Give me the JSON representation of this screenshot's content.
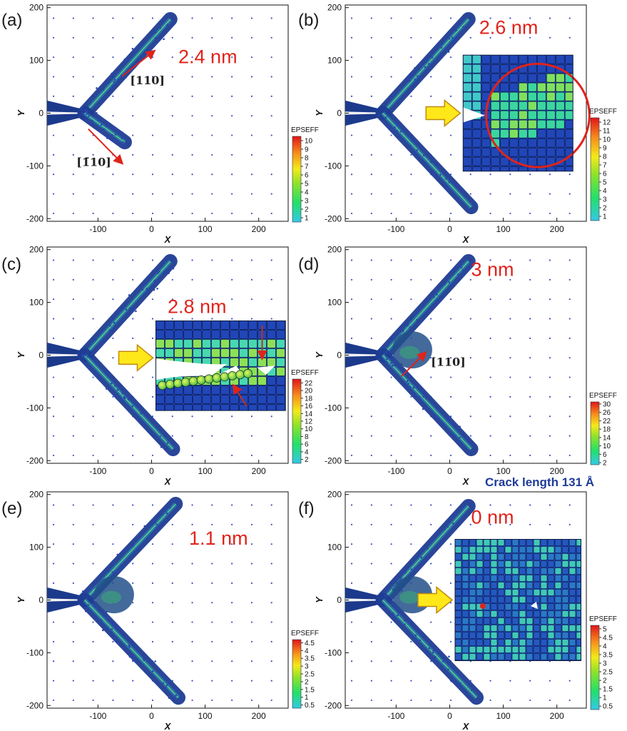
{
  "figure": {
    "crack_note": "Crack length 131 Å"
  },
  "chart_data": [
    {
      "type": "scatter",
      "panel": "(a)",
      "title": "",
      "xlabel": "X",
      "ylabel": "Y",
      "xlim": [
        -195,
        255
      ],
      "ylim": [
        -205,
        205
      ],
      "xticks": [
        -100,
        0,
        100,
        200
      ],
      "yticks": [
        -200,
        -100,
        0,
        100,
        200
      ],
      "annotation": "2.4 nm",
      "annotation_pos": [
        50,
        95
      ],
      "directions": [
        {
          "label": "[110]",
          "from": [
            -55,
            70
          ],
          "to": [
            5,
            118
          ],
          "label_pos": [
            -40,
            55
          ]
        },
        {
          "label": "[1̄10]",
          "from": [
            -118,
            -30
          ],
          "to": [
            -55,
            -95
          ],
          "label_pos": [
            -140,
            -100
          ]
        }
      ],
      "colorbar": {
        "title": "EPSEFF",
        "ticks": [
          10,
          9,
          8,
          7,
          6,
          5,
          4,
          3,
          2,
          1
        ],
        "min": 0.5,
        "max": 10.5
      },
      "insets": [],
      "inset_arrow": false
    },
    {
      "type": "scatter",
      "panel": "(b)",
      "title": "",
      "xlabel": "X",
      "ylabel": "Y",
      "xlim": [
        -195,
        255
      ],
      "ylim": [
        -205,
        205
      ],
      "xticks": [
        -100,
        0,
        100,
        200
      ],
      "yticks": [
        -200,
        -100,
        0,
        100,
        200
      ],
      "annotation": "2.6 nm",
      "annotation_pos": [
        55,
        150
      ],
      "directions": [],
      "colorbar": {
        "title": "EPSEFF",
        "ticks": [
          12,
          11,
          10,
          9,
          8,
          7,
          6,
          5,
          4,
          3,
          2,
          1
        ],
        "min": 0.5,
        "max": 12.5
      },
      "insets": [
        {
          "x": [
            25,
            230
          ],
          "y": [
            -110,
            110
          ],
          "style": "circle"
        }
      ],
      "inset_arrow": true
    },
    {
      "type": "scatter",
      "panel": "(c)",
      "title": "",
      "xlabel": "X",
      "ylabel": "Y",
      "xlim": [
        -195,
        255
      ],
      "ylim": [
        -205,
        205
      ],
      "xticks": [
        -100,
        0,
        100,
        200
      ],
      "yticks": [
        -200,
        -100,
        0,
        100,
        200
      ],
      "annotation": "2.8 nm",
      "annotation_pos": [
        30,
        80
      ],
      "directions": [],
      "colorbar": {
        "title": "EPSEFF",
        "ticks": [
          22,
          20,
          18,
          16,
          14,
          12,
          10,
          8,
          6,
          4,
          2
        ],
        "min": 1,
        "max": 23
      },
      "insets": [
        {
          "x": [
            8,
            250
          ],
          "y": [
            -105,
            65
          ],
          "style": "pores"
        }
      ],
      "inset_arrow": true
    },
    {
      "type": "scatter",
      "panel": "(d)",
      "title": "",
      "xlabel": "X",
      "ylabel": "Y",
      "xlim": [
        -195,
        255
      ],
      "ylim": [
        -205,
        205
      ],
      "xticks": [
        -100,
        0,
        100,
        200
      ],
      "yticks": [
        -200,
        -100,
        0,
        100,
        200
      ],
      "annotation": "3 nm",
      "annotation_pos": [
        40,
        150
      ],
      "directions": [
        {
          "label": "[110]",
          "from": [
            -90,
            -40
          ],
          "to": [
            -45,
            5
          ],
          "label_pos": [
            -35,
            -20
          ]
        }
      ],
      "colorbar": {
        "title": "EPSEFF",
        "ticks": [
          30,
          26,
          22,
          18,
          14,
          10,
          6,
          2
        ],
        "min": 1,
        "max": 31
      },
      "insets": [],
      "inset_arrow": false
    },
    {
      "type": "scatter",
      "panel": "(e)",
      "title": "",
      "xlabel": "X",
      "ylabel": "Y",
      "xlim": [
        -195,
        255
      ],
      "ylim": [
        -205,
        205
      ],
      "xticks": [
        -100,
        0,
        100,
        200
      ],
      "yticks": [
        -200,
        -100,
        0,
        100,
        200
      ],
      "annotation": "1.1 nm",
      "annotation_pos": [
        70,
        105
      ],
      "directions": [],
      "colorbar": {
        "title": "EPSEFF",
        "ticks": [
          4.5,
          4,
          3.5,
          3,
          2.5,
          2,
          1.5,
          1,
          0.5
        ],
        "min": 0.3,
        "max": 4.7
      },
      "insets": [],
      "inset_arrow": false
    },
    {
      "type": "scatter",
      "panel": "(f)",
      "title": "",
      "xlabel": "X",
      "ylabel": "Y",
      "xlim": [
        -195,
        255
      ],
      "ylim": [
        -205,
        205
      ],
      "xticks": [
        -100,
        0,
        100,
        200
      ],
      "yticks": [
        -200,
        -100,
        0,
        100,
        200
      ],
      "annotation": "0 nm",
      "annotation_pos": [
        40,
        145
      ],
      "directions": [],
      "colorbar": {
        "title": "EPSEFF",
        "ticks": [
          5,
          4.5,
          4,
          3.5,
          3,
          2.5,
          2,
          1.5,
          1,
          0.5
        ],
        "min": 0.3,
        "max": 5.2
      },
      "insets": [
        {
          "x": [
            10,
            245
          ],
          "y": [
            -115,
            115
          ],
          "style": "mosaic"
        }
      ],
      "inset_arrow": true
    }
  ]
}
